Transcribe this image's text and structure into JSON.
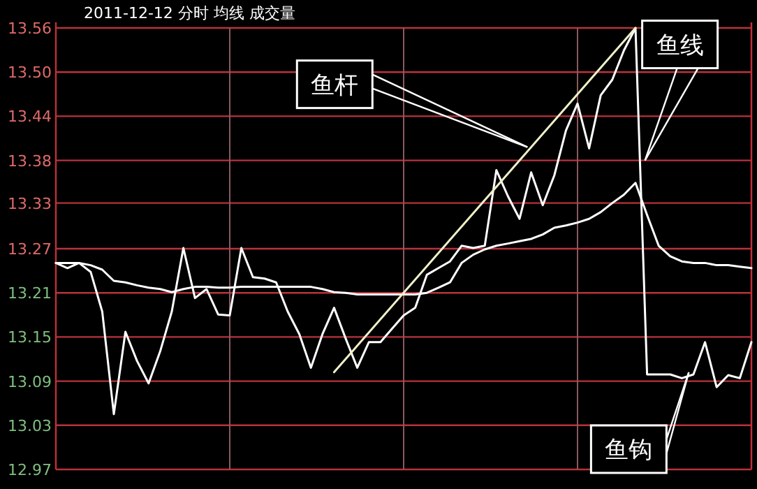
{
  "chart_data": {
    "type": "line",
    "title": "2011-12-12 分时 均线 成交量",
    "categories": [
      null,
      null,
      null,
      null,
      null,
      null,
      null,
      null,
      null,
      null,
      null,
      null,
      null,
      null,
      null,
      null,
      null,
      null,
      null,
      null,
      null,
      null,
      null,
      null,
      null,
      null,
      null,
      null,
      null,
      null,
      null,
      null,
      null,
      null,
      null,
      null,
      null,
      null,
      null,
      null,
      null,
      null,
      null,
      null,
      null,
      null,
      null,
      null,
      null,
      null,
      null,
      null,
      null,
      null,
      null,
      null,
      null,
      null,
      null,
      null,
      null
    ],
    "series": [
      {
        "color": "#ffffff",
        "values": [
          13.246,
          13.239,
          13.246,
          13.234,
          13.181,
          13.044,
          13.154,
          13.115,
          13.085,
          13.128,
          13.181,
          13.266,
          13.199,
          13.211,
          13.177,
          13.176,
          13.266,
          13.227,
          13.225,
          13.22,
          13.181,
          13.151,
          13.106,
          13.151,
          13.186,
          13.145,
          13.106,
          13.14,
          13.14,
          13.158,
          13.176,
          13.186,
          13.23,
          13.239,
          13.248,
          13.269,
          13.266,
          13.269,
          13.37,
          13.335,
          13.305,
          13.367,
          13.323,
          13.363,
          13.423,
          13.459,
          13.399,
          13.47,
          13.491,
          13.53,
          13.56,
          13.097,
          13.097,
          13.097,
          13.092,
          13.097,
          13.14,
          13.08,
          13.096,
          13.092,
          13.14
        ]
      },
      {
        "color": "#ffffff",
        "values": [
          13.246,
          13.246,
          13.246,
          13.243,
          13.237,
          13.222,
          13.22,
          13.216,
          13.213,
          13.211,
          13.207,
          13.211,
          13.214,
          13.214,
          13.213,
          13.213,
          13.214,
          13.214,
          13.214,
          13.214,
          13.214,
          13.214,
          13.214,
          13.211,
          13.207,
          13.206,
          13.204,
          13.204,
          13.204,
          13.204,
          13.204,
          13.204,
          13.206,
          13.213,
          13.22,
          13.246,
          13.257,
          13.264,
          13.269,
          13.272,
          13.275,
          13.278,
          13.284,
          13.293,
          13.296,
          13.3,
          13.305,
          13.314,
          13.326,
          13.337,
          13.353,
          13.31,
          13.269,
          13.255,
          13.248,
          13.246,
          13.246,
          13.243,
          13.243,
          13.241,
          13.239
        ]
      },
      {
        "type": "line",
        "color": "#f0f0c8",
        "values": [
          null,
          null,
          null,
          null,
          null,
          null,
          null,
          null,
          null,
          null,
          null,
          null,
          null,
          null,
          null,
          null,
          null,
          null,
          null,
          null,
          null,
          null,
          null,
          null,
          13.1,
          null,
          null,
          null,
          null,
          null,
          null,
          null,
          null,
          null,
          null,
          null,
          null,
          null,
          null,
          null,
          null,
          null,
          null,
          null,
          null,
          null,
          null,
          null,
          null,
          null,
          13.56,
          null,
          null,
          null,
          null,
          null,
          null,
          null,
          null,
          null,
          null
        ]
      }
    ],
    "ylim": [
      12.97,
      13.56
    ],
    "yticks": [
      {
        "value": 13.56,
        "label": "13.56"
      },
      {
        "value": 13.501,
        "label": "13.50"
      },
      {
        "value": 13.442,
        "label": "13.44"
      },
      {
        "value": 13.383,
        "label": "13.38"
      },
      {
        "value": 13.326,
        "label": "13.33"
      },
      {
        "value": 13.265,
        "label": "13.27"
      },
      {
        "value": 13.206,
        "label": "13.21"
      },
      {
        "value": 13.147,
        "label": "13.15"
      },
      {
        "value": 13.088,
        "label": "13.09"
      },
      {
        "value": 13.029,
        "label": "13.03"
      },
      {
        "value": 12.97,
        "label": "12.97"
      }
    ],
    "grid": true,
    "annotations": [
      "鱼杆",
      "鱼线",
      "鱼钩"
    ]
  }
}
